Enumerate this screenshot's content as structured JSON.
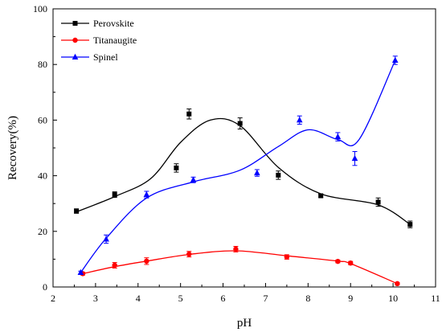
{
  "chart_data": {
    "type": "scatter",
    "xlabel": "pH",
    "ylabel": "Recovery(%)",
    "xlim": [
      2,
      11
    ],
    "ylim": [
      0,
      100
    ],
    "xticks": [
      2,
      3,
      4,
      5,
      6,
      7,
      8,
      9,
      10,
      11
    ],
    "yticks": [
      0,
      20,
      40,
      60,
      80,
      100
    ],
    "grid": false,
    "legend_position": "top-left",
    "series": [
      {
        "name": "Perovskite",
        "color": "#000000",
        "marker": "square",
        "points": [
          {
            "x": 2.55,
            "y": 27.3,
            "err": 0.8
          },
          {
            "x": 3.45,
            "y": 33.2,
            "err": 1.0
          },
          {
            "x": 4.9,
            "y": 42.8,
            "err": 1.5
          },
          {
            "x": 5.2,
            "y": 62.2,
            "err": 1.8
          },
          {
            "x": 6.4,
            "y": 58.8,
            "err": 2.0
          },
          {
            "x": 7.3,
            "y": 40.2,
            "err": 1.5
          },
          {
            "x": 8.3,
            "y": 32.8,
            "err": 0.5
          },
          {
            "x": 9.65,
            "y": 30.5,
            "err": 1.5
          },
          {
            "x": 10.4,
            "y": 22.5,
            "err": 1.2
          }
        ],
        "curve": [
          {
            "x": 2.55,
            "y": 27.0
          },
          {
            "x": 3.45,
            "y": 32.5
          },
          {
            "x": 4.3,
            "y": 39.0
          },
          {
            "x": 5.0,
            "y": 52.0
          },
          {
            "x": 5.7,
            "y": 60.0
          },
          {
            "x": 6.4,
            "y": 58.0
          },
          {
            "x": 7.3,
            "y": 43.0
          },
          {
            "x": 8.3,
            "y": 33.5
          },
          {
            "x": 9.65,
            "y": 29.5
          },
          {
            "x": 10.4,
            "y": 22.5
          }
        ]
      },
      {
        "name": "Titanaugite",
        "color": "#ff0000",
        "marker": "circle",
        "points": [
          {
            "x": 2.7,
            "y": 4.8,
            "err": 0.5
          },
          {
            "x": 3.45,
            "y": 7.8,
            "err": 1.0
          },
          {
            "x": 4.2,
            "y": 9.3,
            "err": 1.2
          },
          {
            "x": 5.2,
            "y": 11.8,
            "err": 1.0
          },
          {
            "x": 6.3,
            "y": 13.6,
            "err": 1.0
          },
          {
            "x": 7.5,
            "y": 10.8,
            "err": 0.8
          },
          {
            "x": 8.7,
            "y": 9.2,
            "err": 0.5
          },
          {
            "x": 9.0,
            "y": 8.6,
            "err": 0.6
          },
          {
            "x": 10.1,
            "y": 1.2,
            "err": 0.4
          }
        ],
        "curve": [
          {
            "x": 2.7,
            "y": 4.8
          },
          {
            "x": 3.45,
            "y": 7.3
          },
          {
            "x": 4.2,
            "y": 9.3
          },
          {
            "x": 5.2,
            "y": 11.7
          },
          {
            "x": 6.3,
            "y": 13.0
          },
          {
            "x": 7.5,
            "y": 11.2
          },
          {
            "x": 8.7,
            "y": 9.3
          },
          {
            "x": 9.0,
            "y": 8.4
          },
          {
            "x": 10.1,
            "y": 1.2
          }
        ]
      },
      {
        "name": "Spinel",
        "color": "#0000ff",
        "marker": "triangle",
        "points": [
          {
            "x": 2.65,
            "y": 5.2,
            "err": 0.5
          },
          {
            "x": 3.25,
            "y": 17.2,
            "err": 1.5
          },
          {
            "x": 4.2,
            "y": 33.2,
            "err": 1.2
          },
          {
            "x": 5.3,
            "y": 38.5,
            "err": 1.0
          },
          {
            "x": 6.8,
            "y": 41.0,
            "err": 1.2
          },
          {
            "x": 7.8,
            "y": 60.0,
            "err": 1.5
          },
          {
            "x": 8.7,
            "y": 54.0,
            "err": 1.5
          },
          {
            "x": 9.1,
            "y": 46.2,
            "err": 2.5
          },
          {
            "x": 10.05,
            "y": 81.5,
            "err": 1.5
          }
        ],
        "curve": [
          {
            "x": 2.65,
            "y": 5.2
          },
          {
            "x": 3.25,
            "y": 17.5
          },
          {
            "x": 4.2,
            "y": 32.0
          },
          {
            "x": 5.3,
            "y": 37.8
          },
          {
            "x": 6.4,
            "y": 42.0
          },
          {
            "x": 7.3,
            "y": 50.5
          },
          {
            "x": 8.0,
            "y": 56.5
          },
          {
            "x": 8.7,
            "y": 53.0
          },
          {
            "x": 9.2,
            "y": 53.0
          },
          {
            "x": 10.05,
            "y": 81.5
          }
        ]
      }
    ]
  }
}
